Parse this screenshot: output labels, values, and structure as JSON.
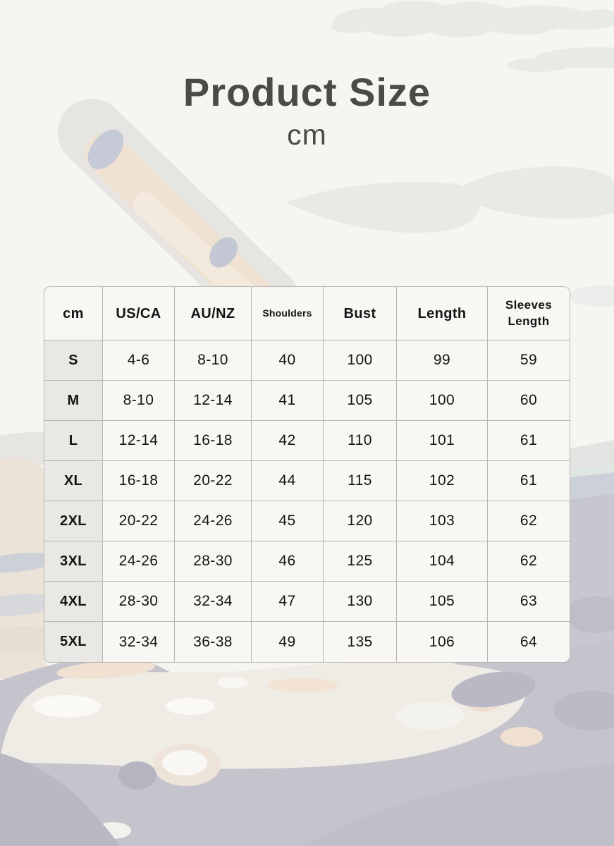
{
  "chart_data": {
    "type": "table",
    "title": "Product Size",
    "unit": "cm",
    "columns": [
      "cm",
      "US/CA",
      "AU/NZ",
      "Shoulders",
      "Bust",
      "Length",
      "Sleeves Length"
    ],
    "rows": [
      [
        "S",
        "4-6",
        "8-10",
        "40",
        "100",
        "99",
        "59"
      ],
      [
        "M",
        "8-10",
        "12-14",
        "41",
        "105",
        "100",
        "60"
      ],
      [
        "L",
        "12-14",
        "16-18",
        "42",
        "110",
        "101",
        "61"
      ],
      [
        "XL",
        "16-18",
        "20-22",
        "44",
        "115",
        "102",
        "61"
      ],
      [
        "2XL",
        "20-22",
        "24-26",
        "45",
        "120",
        "103",
        "62"
      ],
      [
        "3XL",
        "24-26",
        "28-30",
        "46",
        "125",
        "104",
        "62"
      ],
      [
        "4XL",
        "28-30",
        "32-34",
        "47",
        "130",
        "105",
        "63"
      ],
      [
        "5XL",
        "32-34",
        "36-38",
        "49",
        "135",
        "106",
        "64"
      ]
    ]
  },
  "colors": {
    "page_background": "#f7f5f2",
    "cloud_gray": "#e9e9e6",
    "table_border": "#b9b7b4",
    "cell_background": "#f8f7f4",
    "size_column_background": "#e9e8e5",
    "table_text": "#141414",
    "title_text": "#4b4a47",
    "stroke_outer": "#e7e5e2",
    "stroke_beige": "#f0e2d2",
    "accent_blue_gray": "#c6c9d6",
    "terrain_lavender": "#c5c4cd",
    "terrain_beige": "#ece3d8",
    "terrain_cream": "#efece5"
  }
}
